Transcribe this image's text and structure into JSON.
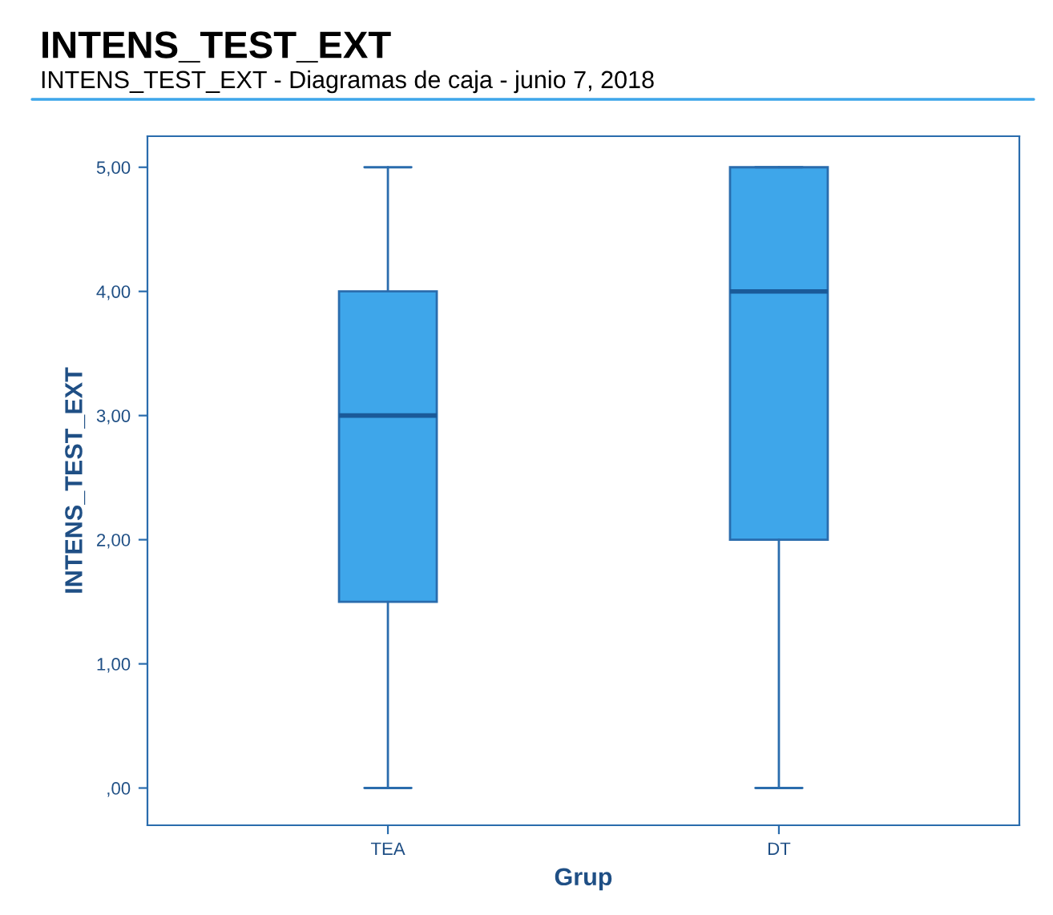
{
  "chart_data": {
    "type": "box",
    "title": "INTENS_TEST_EXT",
    "subtitle": "INTENS_TEST_EXT - Diagramas de caja - junio 7, 2018",
    "xlabel": "Grup",
    "ylabel": "INTENS_TEST_EXT",
    "categories": [
      "TEA",
      "DT"
    ],
    "boxes": [
      {
        "low": 0,
        "q1": 1.5,
        "median": 3,
        "q3": 4,
        "high": 5
      },
      {
        "low": 0,
        "q1": 2,
        "median": 4,
        "q3": 5,
        "high": 5
      }
    ],
    "color": "#3ea6ea",
    "ylim": [
      -0.3,
      5.25
    ],
    "yticks": [
      {
        "value": 0,
        "label": ",00"
      },
      {
        "value": 1,
        "label": "1,00"
      },
      {
        "value": 2,
        "label": "2,00"
      },
      {
        "value": 3,
        "label": "3,00"
      },
      {
        "value": 4,
        "label": "4,00"
      },
      {
        "value": 5,
        "label": "5,00"
      }
    ],
    "grid": false
  }
}
